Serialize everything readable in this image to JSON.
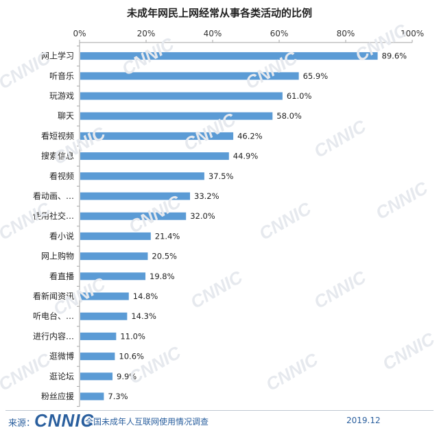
{
  "chart_data": {
    "type": "bar",
    "orientation": "horizontal",
    "title": "未成年网民上网经常从事各类活动的比例",
    "categories": [
      "网上学习",
      "听音乐",
      "玩游戏",
      "聊天",
      "看短视频",
      "搜索信息",
      "看视频",
      "看动画、…",
      "使用社交…",
      "看小说",
      "网上购物",
      "看直播",
      "看新闻资讯",
      "听电台、…",
      "进行内容…",
      "逛微博",
      "逛论坛",
      "粉丝应援"
    ],
    "values": [
      89.6,
      65.9,
      61.0,
      58.0,
      46.2,
      44.9,
      37.5,
      33.2,
      32.0,
      21.4,
      20.5,
      19.8,
      14.8,
      14.3,
      11.0,
      10.6,
      9.9,
      7.3
    ],
    "value_labels": [
      "89.6%",
      "65.9%",
      "61.0%",
      "58.0%",
      "46.2%",
      "44.9%",
      "37.5%",
      "33.2%",
      "32.0%",
      "21.4%",
      "20.5%",
      "19.8%",
      "14.8%",
      "14.3%",
      "11.0%",
      "10.6%",
      "9.9%",
      "7.3%"
    ],
    "x_ticks": [
      "0%",
      "20%",
      "40%",
      "60%",
      "80%",
      "100%"
    ],
    "xlim": [
      0,
      100
    ],
    "xlabel": "",
    "ylabel": "",
    "axis_position": "top",
    "grid": false,
    "legend": "none",
    "bar_color": "#5b9bd5"
  },
  "watermark": "CNNIC",
  "footer": {
    "source_label": "来源：",
    "logo": "CNNIC",
    "survey": "全国未成年人互联网使用情况调查",
    "date": "2019.12"
  },
  "colors": {
    "bar": "#5b9bd5",
    "axis": "#a6a6a6",
    "footer_text": "#2a5f9e",
    "watermark": "#e6e9ee"
  }
}
